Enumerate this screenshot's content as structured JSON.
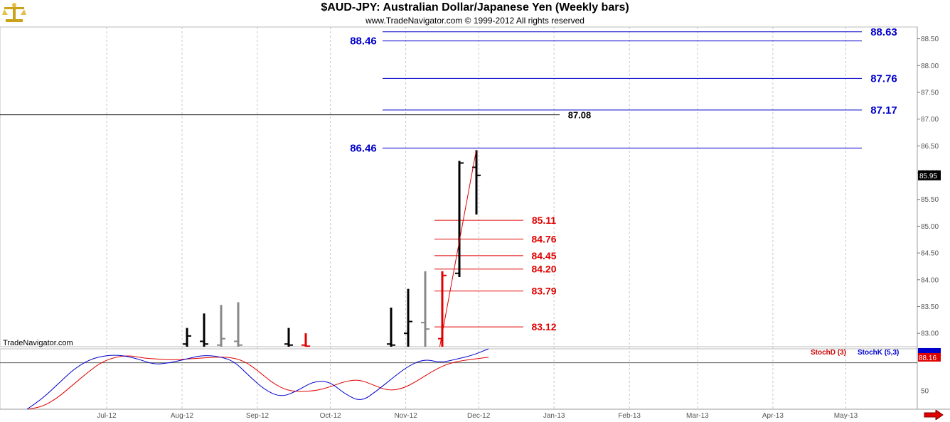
{
  "header": {
    "title": "$AUD-JPY:  Australian Dollar/Japanese Yen  (Weekly bars)",
    "subtitle": "www.TradeNavigator.com © 1999-2012 All rights reserved"
  },
  "brand": "TradeNavigator.com",
  "colors": {
    "blue_level": "#0000cc",
    "red_level": "#e00000",
    "black_level": "#000000",
    "bar_gray": "#888888",
    "grid": "#c8c8c8"
  },
  "icons": {
    "logo": "gold-scale-icon",
    "scroll": "red-arrow-right-icon"
  },
  "chart_data": {
    "type": "bar",
    "title": "$AUD-JPY:  Australian Dollar/Japanese Yen  (Weekly bars)",
    "price_axis": {
      "ylim": [
        82.75,
        88.72
      ],
      "ticks": [
        "88.50",
        "88.00",
        "87.50",
        "87.00",
        "86.50",
        "86.00",
        "85.50",
        "85.00",
        "84.50",
        "84.00",
        "83.50",
        "83.00"
      ],
      "last_price": "85.95"
    },
    "x_ticks": [
      "Jul-12",
      "Aug-12",
      "Sep-12",
      "Oct-12",
      "Nov-12",
      "Dec-12",
      "Jan-13",
      "Feb-13",
      "Mar-13",
      "Apr-13",
      "May-13"
    ],
    "ohlc_bars": [
      {
        "date": "2012-08-03",
        "high": 83.1,
        "low": 82.75,
        "open": 82.8,
        "close": 82.95,
        "color": "black"
      },
      {
        "date": "2012-08-10",
        "high": 83.37,
        "low": 82.75,
        "open": 82.85,
        "close": 82.8,
        "color": "black"
      },
      {
        "date": "2012-08-17",
        "high": 83.53,
        "low": 82.75,
        "open": 82.78,
        "close": 82.9,
        "color": "gray"
      },
      {
        "date": "2012-08-24",
        "high": 83.58,
        "low": 82.75,
        "open": 82.85,
        "close": 82.78,
        "color": "gray"
      },
      {
        "date": "2012-09-14",
        "high": 83.1,
        "low": 82.75,
        "open": 82.8,
        "close": 82.78,
        "color": "black"
      },
      {
        "date": "2012-09-21",
        "high": 83.0,
        "low": 82.75,
        "open": 82.78,
        "close": 82.76,
        "color": "red"
      },
      {
        "date": "2012-10-26",
        "high": 83.48,
        "low": 82.75,
        "open": 82.8,
        "close": 82.78,
        "color": "black"
      },
      {
        "date": "2012-11-02",
        "high": 83.83,
        "low": 82.75,
        "open": 83.0,
        "close": 83.22,
        "color": "black"
      },
      {
        "date": "2012-11-09",
        "high": 84.16,
        "low": 82.75,
        "open": 83.2,
        "close": 83.08,
        "color": "gray"
      },
      {
        "date": "2012-11-16",
        "high": 84.16,
        "low": 82.75,
        "open": 82.9,
        "close": 84.08,
        "color": "red"
      },
      {
        "date": "2012-11-23",
        "high": 86.22,
        "low": 84.05,
        "open": 84.12,
        "close": 86.18,
        "color": "black"
      },
      {
        "date": "2012-11-30",
        "high": 86.42,
        "low": 85.22,
        "open": 86.1,
        "close": 85.95,
        "color": "black"
      }
    ],
    "levels": [
      {
        "label": "88.63",
        "value": 88.63,
        "color": "blue"
      },
      {
        "label": "88.46",
        "value": 88.46,
        "color": "blue"
      },
      {
        "label": "87.76",
        "value": 87.76,
        "color": "blue"
      },
      {
        "label": "87.17",
        "value": 87.17,
        "color": "blue"
      },
      {
        "label": "87.08",
        "value": 87.08,
        "color": "black"
      },
      {
        "label": "86.46",
        "value": 86.46,
        "color": "blue"
      },
      {
        "label": "85.11",
        "value": 85.11,
        "color": "red"
      },
      {
        "label": "84.76",
        "value": 84.76,
        "color": "red"
      },
      {
        "label": "84.45",
        "value": 84.45,
        "color": "red"
      },
      {
        "label": "84.20",
        "value": 84.2,
        "color": "red"
      },
      {
        "label": "83.79",
        "value": 83.79,
        "color": "red"
      },
      {
        "label": "83.12",
        "value": 83.12,
        "color": "red"
      }
    ],
    "trendline": {
      "from": {
        "date": "2012-11-15",
        "value": 82.75
      },
      "to": {
        "date": "2012-11-30",
        "value": 86.42
      },
      "color": "red"
    },
    "indicator": {
      "name": "Stochastic",
      "ylim": [
        30,
        95
      ],
      "ticks": [
        "50"
      ],
      "reference_line": 80,
      "last_value_label": "88.16",
      "series": [
        {
          "name": "StochD (3)",
          "color": "red",
          "values": [
            30,
            33,
            42,
            55,
            68,
            80,
            86,
            88,
            85,
            84,
            83,
            84,
            85,
            86,
            86,
            82,
            71,
            58,
            50,
            49,
            50,
            54,
            60,
            62,
            56,
            50,
            52,
            60,
            70,
            78,
            82,
            84,
            86
          ]
        },
        {
          "name": "StochK (5,3)",
          "color": "blue",
          "values": [
            30,
            42,
            58,
            74,
            84,
            88,
            88,
            84,
            78,
            80,
            84,
            88,
            87,
            82,
            65,
            50,
            43,
            50,
            60,
            60,
            46,
            38,
            50,
            64,
            77,
            84,
            80,
            84,
            88,
            95
          ]
        }
      ]
    },
    "legend": [
      "StochD (3)",
      "StochK (5,3)"
    ]
  }
}
